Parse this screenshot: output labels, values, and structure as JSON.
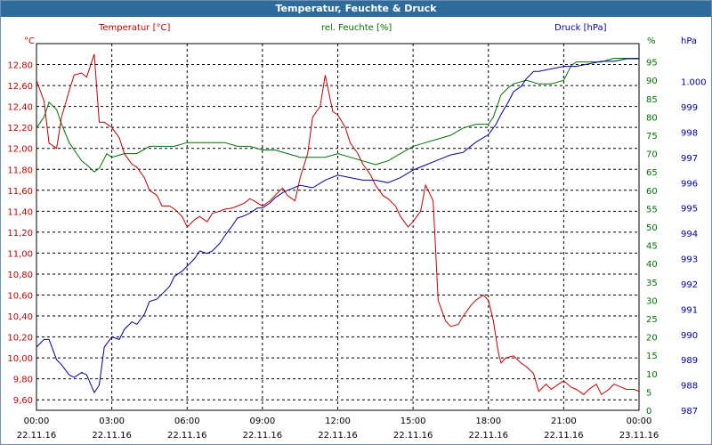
{
  "window": {
    "title": "Temperatur, Feuchte & Druck"
  },
  "colors": {
    "temperature": "#c00000",
    "humidity": "#007000",
    "pressure": "#0000a0",
    "grid": "#000000"
  },
  "chart_data": {
    "type": "line",
    "title": "Temperatur, Feuchte & Druck",
    "x_unit": "hours since 22.11.16 00:00",
    "xlim": [
      0,
      24
    ],
    "x_ticks": [
      {
        "time": "00:00",
        "date": "22.11.16"
      },
      {
        "time": "03:00",
        "date": "22.11.16"
      },
      {
        "time": "06:00",
        "date": "22.11.16"
      },
      {
        "time": "09:00",
        "date": "22.11.16"
      },
      {
        "time": "12:00",
        "date": "22.11.16"
      },
      {
        "time": "15:00",
        "date": "22.11.16"
      },
      {
        "time": "18:00",
        "date": "22.11.16"
      },
      {
        "time": "21:00",
        "date": "22.11.16"
      },
      {
        "time": "00:00",
        "date": "23.11.16"
      }
    ],
    "axes": {
      "temperature": {
        "unit": "°C",
        "label": "Temperatur [°C]",
        "range": [
          9.5,
          13.0
        ],
        "ticks": [
          "9,60",
          "9,80",
          "10,00",
          "10,20",
          "10,40",
          "10,60",
          "10,80",
          "11,00",
          "11,20",
          "11,40",
          "11,60",
          "11,80",
          "12,00",
          "12,20",
          "12,40",
          "12,60",
          "12,80"
        ]
      },
      "humidity": {
        "unit": "%",
        "label": "rel. Feuchte [%]",
        "range": [
          0,
          100
        ],
        "ticks": [
          "0",
          "5",
          "10",
          "15",
          "20",
          "25",
          "30",
          "35",
          "40",
          "45",
          "50",
          "55",
          "60",
          "65",
          "70",
          "75",
          "80",
          "85",
          "90",
          "95"
        ]
      },
      "pressure": {
        "unit": "hPa",
        "label": "Druck [hPa]",
        "range": [
          987,
          1001.5
        ],
        "ticks": [
          "987",
          "988",
          "989",
          "990",
          "991",
          "992",
          "993",
          "994",
          "995",
          "996",
          "997",
          "998",
          "999",
          "1.000"
        ]
      }
    },
    "series": [
      {
        "name": "Temperatur",
        "axis": "temperature",
        "color": "#c00000",
        "x": [
          0,
          0.3,
          0.5,
          0.8,
          1.0,
          1.3,
          1.5,
          1.8,
          2.0,
          2.3,
          2.5,
          2.7,
          3.0,
          3.3,
          3.5,
          3.8,
          4.0,
          4.3,
          4.5,
          4.8,
          5.0,
          5.3,
          5.5,
          5.8,
          6.0,
          6.3,
          6.5,
          6.8,
          7.0,
          7.3,
          7.5,
          7.8,
          8.0,
          8.3,
          8.5,
          8.8,
          9.0,
          9.3,
          9.5,
          9.8,
          10.0,
          10.3,
          10.5,
          10.8,
          11.0,
          11.3,
          11.5,
          11.8,
          12.0,
          12.3,
          12.5,
          12.8,
          13.0,
          13.3,
          13.5,
          13.8,
          14.0,
          14.3,
          14.5,
          14.8,
          15.0,
          15.3,
          15.5,
          15.8,
          16.0,
          16.3,
          16.5,
          16.8,
          17.0,
          17.3,
          17.5,
          17.8,
          18.0,
          18.2,
          18.3,
          18.4,
          18.5,
          18.7,
          19.0,
          19.3,
          19.5,
          19.8,
          20.0,
          20.3,
          20.5,
          20.8,
          21.0,
          21.3,
          21.5,
          21.8,
          22.0,
          22.3,
          22.5,
          22.8,
          23.0,
          23.3,
          23.5,
          23.8,
          24.0
        ],
        "values": [
          12.65,
          12.45,
          12.05,
          12.0,
          12.3,
          12.55,
          12.7,
          12.72,
          12.68,
          12.9,
          12.25,
          12.25,
          12.2,
          12.1,
          11.95,
          11.85,
          11.82,
          11.72,
          11.6,
          11.55,
          11.45,
          11.45,
          11.42,
          11.35,
          11.25,
          11.32,
          11.35,
          11.3,
          11.38,
          11.4,
          11.42,
          11.43,
          11.45,
          11.48,
          11.52,
          11.48,
          11.45,
          11.5,
          11.55,
          11.62,
          11.55,
          11.5,
          11.72,
          11.95,
          12.3,
          12.4,
          12.7,
          12.35,
          12.32,
          12.2,
          12.05,
          11.95,
          11.85,
          11.75,
          11.65,
          11.55,
          11.52,
          11.45,
          11.35,
          11.25,
          11.3,
          11.4,
          11.65,
          11.5,
          10.55,
          10.35,
          10.3,
          10.32,
          10.4,
          10.5,
          10.55,
          10.6,
          10.55,
          10.35,
          10.2,
          10.05,
          9.95,
          10.0,
          10.02,
          9.95,
          9.92,
          9.85,
          9.68,
          9.75,
          9.7,
          9.75,
          9.78,
          9.72,
          9.7,
          9.65,
          9.7,
          9.75,
          9.65,
          9.7,
          9.75,
          9.72,
          9.7,
          9.7,
          9.68
        ]
      },
      {
        "name": "rel. Feuchte",
        "axis": "humidity",
        "color": "#007000",
        "x": [
          0,
          0.3,
          0.5,
          0.8,
          1.0,
          1.3,
          1.5,
          1.8,
          2.0,
          2.3,
          2.5,
          2.8,
          3.0,
          3.5,
          4.0,
          4.5,
          5.0,
          5.5,
          6.0,
          6.5,
          7.0,
          7.5,
          8.0,
          8.5,
          9.0,
          9.5,
          10.0,
          10.5,
          11.0,
          11.5,
          12.0,
          12.5,
          13.0,
          13.5,
          14.0,
          14.5,
          15.0,
          15.5,
          16.0,
          16.5,
          17.0,
          17.5,
          18.0,
          18.2,
          18.5,
          18.8,
          19.0,
          19.5,
          20.0,
          20.5,
          21.0,
          21.3,
          21.5,
          22.0,
          22.5,
          23.0,
          23.5,
          24.0
        ],
        "values": [
          77,
          80,
          84,
          82,
          78,
          73,
          71,
          68,
          67,
          65,
          66,
          70,
          69,
          70,
          70,
          72,
          72,
          72,
          73,
          73,
          73,
          73,
          72,
          72,
          71,
          71,
          70,
          69,
          69,
          69,
          70,
          69,
          68,
          67,
          68,
          70,
          72,
          73,
          74,
          75,
          77,
          78,
          78,
          80,
          86,
          88,
          89,
          90,
          89,
          89,
          90,
          94,
          95,
          95,
          95,
          96,
          96,
          96
        ]
      },
      {
        "name": "Druck",
        "axis": "pressure",
        "color": "#0000a0",
        "x": [
          0,
          0.3,
          0.5,
          0.8,
          1.0,
          1.3,
          1.5,
          1.8,
          2.0,
          2.3,
          2.5,
          2.7,
          3.0,
          3.3,
          3.5,
          3.8,
          4.0,
          4.3,
          4.5,
          4.8,
          5.0,
          5.3,
          5.5,
          5.8,
          6.0,
          6.3,
          6.5,
          6.8,
          7.0,
          7.3,
          7.5,
          7.8,
          8.0,
          8.3,
          8.5,
          8.8,
          9.0,
          9.3,
          9.5,
          9.8,
          10.0,
          10.5,
          11.0,
          11.5,
          12.0,
          12.5,
          13.0,
          13.5,
          14.0,
          14.5,
          15.0,
          15.5,
          16.0,
          16.5,
          17.0,
          17.5,
          18.0,
          18.3,
          18.5,
          18.8,
          19.0,
          19.3,
          19.5,
          19.8,
          20.0,
          20.5,
          21.0,
          21.5,
          22.0,
          22.5,
          23.0,
          23.5,
          24.0
        ],
        "values": [
          989.5,
          989.8,
          989.8,
          989.0,
          988.8,
          988.4,
          988.3,
          988.5,
          988.4,
          987.7,
          988.0,
          989.5,
          989.9,
          989.8,
          990.2,
          990.5,
          990.4,
          990.8,
          991.3,
          991.4,
          991.6,
          991.9,
          992.3,
          992.5,
          992.7,
          993.0,
          993.3,
          993.2,
          993.3,
          993.6,
          993.9,
          994.3,
          994.6,
          994.7,
          994.8,
          995.0,
          995.0,
          995.2,
          995.4,
          995.6,
          995.7,
          995.9,
          995.8,
          996.1,
          996.3,
          996.2,
          996.1,
          996.1,
          996.0,
          996.2,
          996.5,
          996.7,
          996.9,
          997.1,
          997.2,
          997.6,
          997.9,
          998.3,
          998.7,
          999.2,
          999.6,
          999.8,
          1000.1,
          1000.4,
          1000.4,
          1000.5,
          1000.6,
          1000.6,
          1000.7,
          1000.8,
          1000.8,
          1000.9,
          1000.9
        ]
      }
    ]
  }
}
